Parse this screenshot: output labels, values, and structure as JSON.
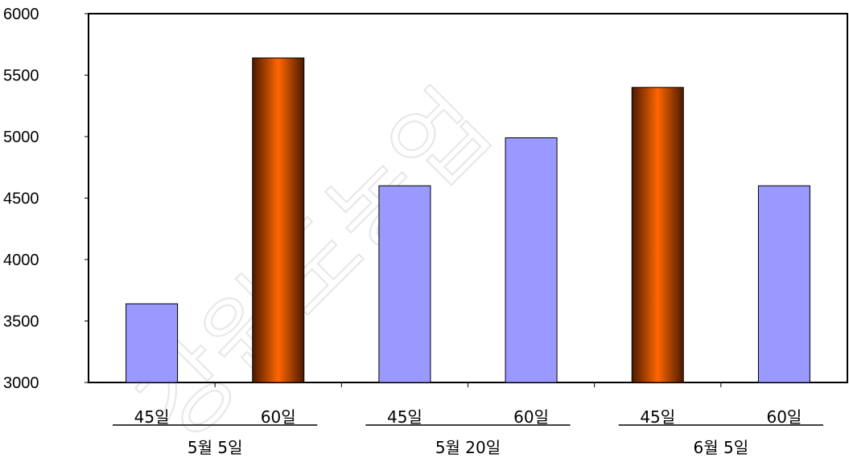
{
  "chart_data": {
    "type": "bar",
    "title": "",
    "xlabel": "",
    "ylabel": "",
    "ylim": [
      3000,
      6000
    ],
    "yticks": [
      "3000",
      "3500",
      "4000",
      "4500",
      "5000",
      "5500",
      "6000"
    ],
    "groups": [
      "5월 5일",
      "5월 20일",
      "6월 5일"
    ],
    "categories": [
      "45일",
      "60일",
      "45일",
      "60일",
      "45일",
      "60일"
    ],
    "values": [
      3640,
      5640,
      4600,
      4990,
      5400,
      4600
    ],
    "highlighted": [
      false,
      true,
      false,
      false,
      true,
      false
    ],
    "grid": false
  },
  "watermark": "강원도농업",
  "colors": {
    "bar": "#9999ff",
    "bar_highlight_center": "#ff6600",
    "bar_highlight_edge": "#4a1a00",
    "axis": "#000000"
  }
}
